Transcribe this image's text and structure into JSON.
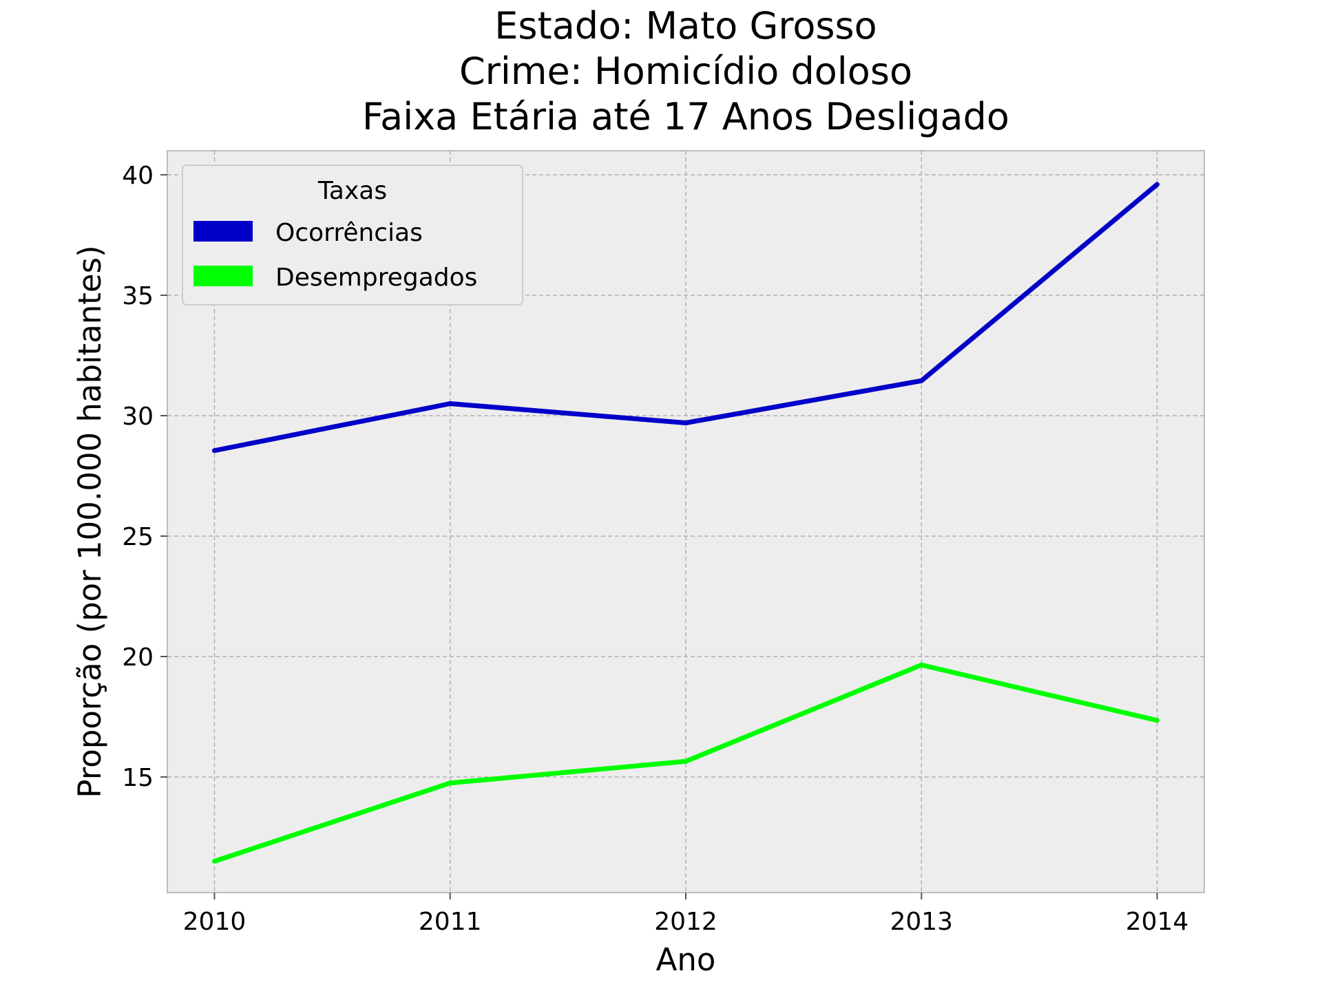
{
  "chart_data": {
    "type": "line",
    "title_lines": [
      "Estado: Mato Grosso",
      "Crime: Homicídio doloso",
      "Faixa Etária até 17 Anos   Desligado"
    ],
    "xlabel": "Ano",
    "ylabel": "Proporção (por 100.000 habitantes)",
    "x": [
      2010,
      2011,
      2012,
      2013,
      2014
    ],
    "x_tick_labels": [
      "2010",
      "2011",
      "2012",
      "2013",
      "2014"
    ],
    "y_ticks": [
      15,
      20,
      25,
      30,
      35,
      40
    ],
    "y_tick_labels": [
      "15",
      "20",
      "25",
      "30",
      "35",
      "40"
    ],
    "xlim": [
      2009.8,
      2014.2
    ],
    "ylim": [
      10.2,
      41.0
    ],
    "grid": true,
    "background": "#ededed",
    "legend": {
      "title": "Taxas",
      "placement": "top-left"
    },
    "series": [
      {
        "name": "Ocorrências",
        "color": "#0000c8",
        "values": [
          28.55,
          30.5,
          29.7,
          31.45,
          39.6
        ]
      },
      {
        "name": "Desempregados",
        "color": "#00ff00",
        "values": [
          11.5,
          14.75,
          15.65,
          19.65,
          17.35
        ]
      }
    ]
  }
}
